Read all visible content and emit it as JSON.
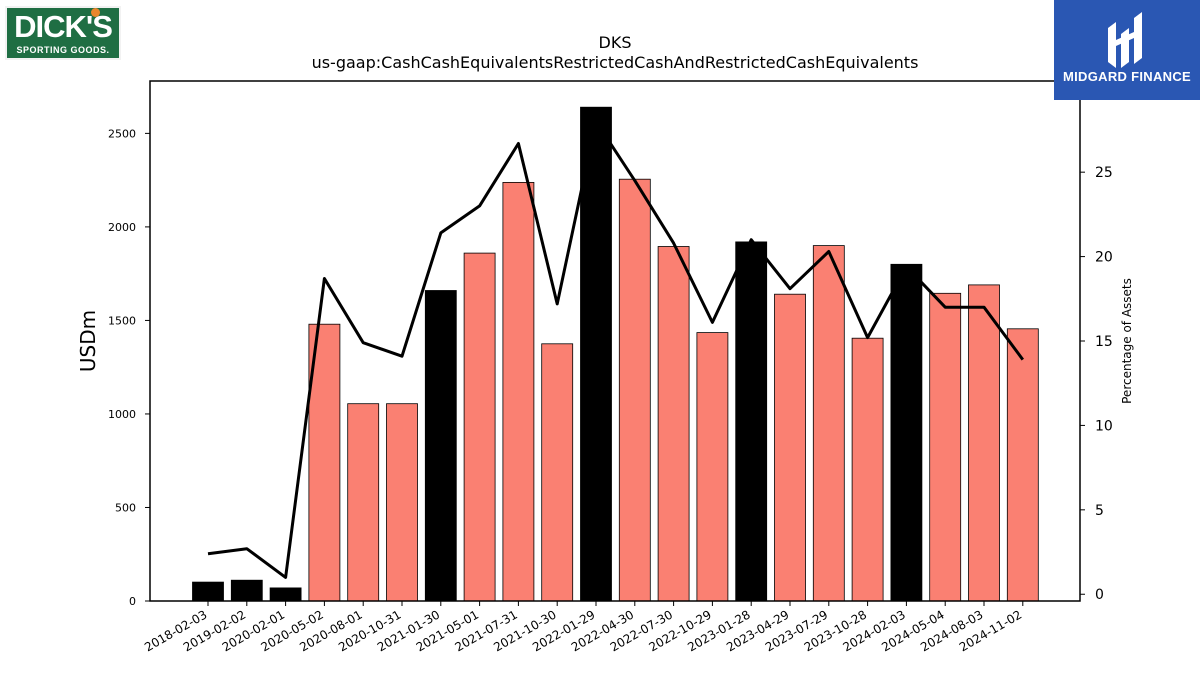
{
  "logos": {
    "left_line1": "DICK'S",
    "left_line2": "SPORTING GOODS.",
    "right_name": "MIDGARD FINANCE"
  },
  "chart_data": {
    "type": "bar",
    "title": "DKS",
    "subtitle": "us-gaap:CashCashEquivalentsRestrictedCashAndRestrictedCashEquivalents",
    "ylabel": "USDm",
    "y2label": "Percentage of Assets",
    "ylim": [
      0,
      2780
    ],
    "y2lim": [
      -0.4,
      30.4
    ],
    "yticks": [
      0,
      500,
      1000,
      1500,
      2000,
      2500
    ],
    "y2ticks": [
      0,
      5,
      10,
      15,
      20,
      25
    ],
    "colors": {
      "annual": "#000000",
      "quarterly": "#fa8072",
      "line": "#000000"
    },
    "categories": [
      "2018-02-03",
      "2019-02-02",
      "2020-02-01",
      "2020-05-02",
      "2020-08-01",
      "2020-10-31",
      "2021-01-30",
      "2021-05-01",
      "2021-07-31",
      "2021-10-30",
      "2022-01-29",
      "2022-04-30",
      "2022-07-30",
      "2022-10-29",
      "2023-01-28",
      "2023-04-29",
      "2023-07-29",
      "2023-10-28",
      "2024-02-03",
      "2024-05-04",
      "2024-08-03",
      "2024-11-02"
    ],
    "series": [
      {
        "type": "bar",
        "values": [
          101,
          111,
          70,
          1480,
          1055,
          1055,
          1660,
          1860,
          2238,
          1375,
          2640,
          2255,
          1895,
          1435,
          1920,
          1640,
          1900,
          1405,
          1800,
          1645,
          1690,
          1455
        ],
        "annual": [
          true,
          true,
          true,
          false,
          false,
          false,
          true,
          false,
          false,
          false,
          true,
          false,
          false,
          false,
          true,
          false,
          false,
          false,
          true,
          false,
          false,
          false
        ]
      },
      {
        "type": "line",
        "axis": "right",
        "values": [
          2.4,
          2.7,
          1.0,
          18.7,
          14.9,
          14.1,
          21.4,
          23.0,
          26.7,
          17.2,
          28.0,
          24.5,
          20.8,
          16.1,
          21.0,
          18.1,
          20.3,
          15.2,
          19.4,
          17.0,
          17.0,
          13.9
        ]
      }
    ]
  }
}
